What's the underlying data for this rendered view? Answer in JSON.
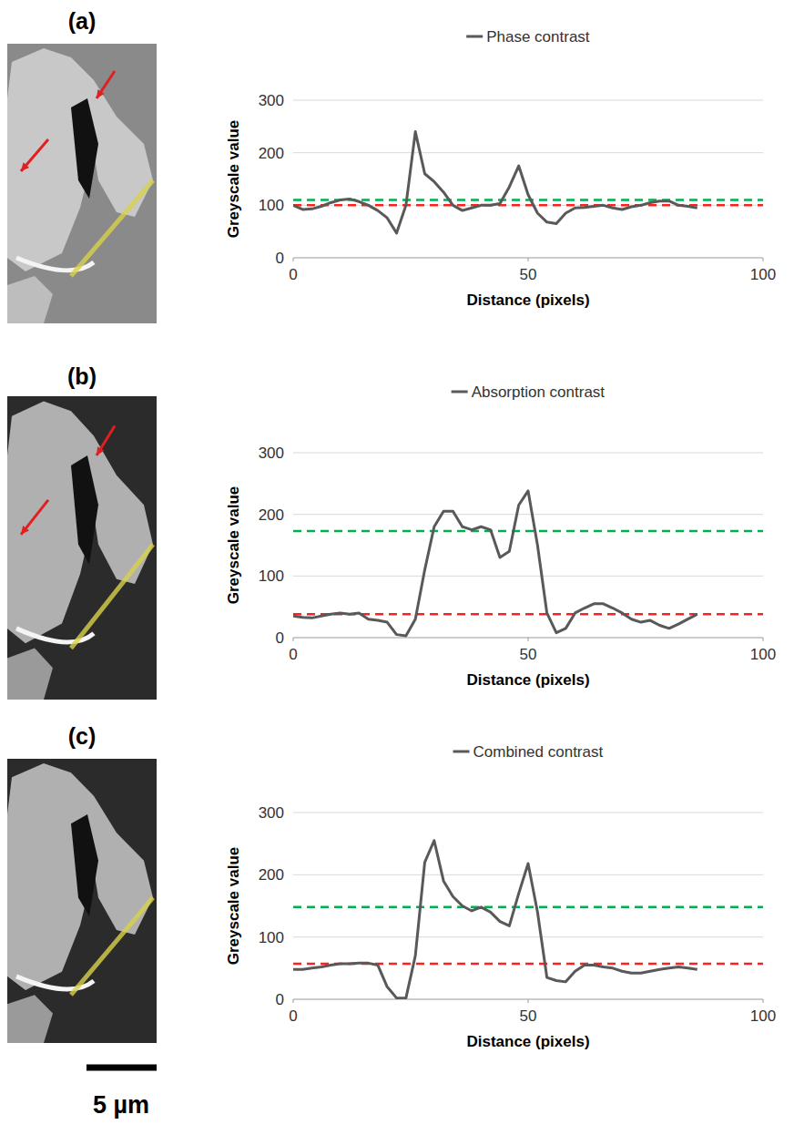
{
  "chart_data": [
    {
      "type": "line",
      "panel": "(a)",
      "xlabel": "Distance (pixels)",
      "ylabel": "Greyscale value",
      "legend": "top",
      "grid": true,
      "xlim": [
        0,
        100
      ],
      "xticks": [
        0,
        50,
        100
      ],
      "ylim": [
        0,
        300
      ],
      "yticks": [
        0,
        100,
        200,
        300
      ],
      "x": [
        0,
        2,
        4,
        6,
        8,
        10,
        12,
        14,
        16,
        18,
        20,
        22,
        24,
        26,
        28,
        30,
        32,
        34,
        36,
        38,
        40,
        42,
        44,
        46,
        48,
        50,
        52,
        54,
        56,
        58,
        60,
        62,
        64,
        66,
        68,
        70,
        72,
        74,
        76,
        78,
        80,
        82,
        84,
        86
      ],
      "series": [
        {
          "name": "Phase contrast",
          "color": "#595959",
          "values": [
            100,
            92,
            93,
            98,
            105,
            110,
            112,
            107,
            100,
            90,
            76,
            47,
            100,
            240,
            160,
            145,
            125,
            100,
            90,
            95,
            100,
            100,
            103,
            135,
            175,
            120,
            85,
            68,
            65,
            85,
            95,
            96,
            98,
            100,
            95,
            92,
            97,
            100,
            105,
            108,
            108,
            100,
            98,
            95
          ]
        }
      ],
      "reference_lines": [
        {
          "value": 110,
          "color": "#00b050",
          "line_style": "dashed"
        },
        {
          "value": 100,
          "color": "#ff2020",
          "line_style": "dashed"
        }
      ]
    },
    {
      "type": "line",
      "panel": "(b)",
      "xlabel": "Distance (pixels)",
      "ylabel": "Greyscale value",
      "legend": "top",
      "grid": true,
      "xlim": [
        0,
        100
      ],
      "xticks": [
        0,
        50,
        100
      ],
      "ylim": [
        0,
        300
      ],
      "yticks": [
        0,
        100,
        200,
        300
      ],
      "x": [
        0,
        2,
        4,
        6,
        8,
        10,
        12,
        14,
        16,
        18,
        20,
        22,
        24,
        26,
        28,
        30,
        32,
        34,
        36,
        38,
        40,
        42,
        44,
        46,
        48,
        50,
        52,
        54,
        56,
        58,
        60,
        62,
        64,
        66,
        68,
        70,
        72,
        74,
        76,
        78,
        80,
        82,
        84,
        86
      ],
      "series": [
        {
          "name": "Absorption contrast",
          "color": "#595959",
          "values": [
            35,
            33,
            32,
            35,
            38,
            40,
            38,
            40,
            30,
            28,
            25,
            5,
            3,
            30,
            110,
            180,
            205,
            205,
            180,
            175,
            180,
            175,
            130,
            140,
            215,
            238,
            150,
            40,
            8,
            15,
            40,
            48,
            55,
            55,
            48,
            40,
            30,
            25,
            28,
            20,
            15,
            22,
            30,
            38
          ]
        }
      ],
      "reference_lines": [
        {
          "value": 173,
          "color": "#00b050",
          "line_style": "dashed"
        },
        {
          "value": 38,
          "color": "#ff2020",
          "line_style": "dashed"
        }
      ]
    },
    {
      "type": "line",
      "panel": "(c)",
      "xlabel": "Distance (pixels)",
      "ylabel": "Greyscale value",
      "legend": "top",
      "grid": true,
      "xlim": [
        0,
        100
      ],
      "xticks": [
        0,
        50,
        100
      ],
      "ylim": [
        0,
        300
      ],
      "yticks": [
        0,
        100,
        200,
        300
      ],
      "x": [
        0,
        2,
        4,
        6,
        8,
        10,
        12,
        14,
        16,
        18,
        20,
        22,
        24,
        26,
        28,
        30,
        32,
        34,
        36,
        38,
        40,
        42,
        44,
        46,
        48,
        50,
        52,
        54,
        56,
        58,
        60,
        62,
        64,
        66,
        68,
        70,
        72,
        74,
        76,
        78,
        80,
        82,
        84,
        86
      ],
      "series": [
        {
          "name": "Combined contrast",
          "color": "#595959",
          "values": [
            48,
            48,
            50,
            52,
            55,
            57,
            57,
            58,
            58,
            55,
            20,
            2,
            2,
            70,
            220,
            255,
            190,
            165,
            150,
            142,
            148,
            140,
            125,
            118,
            170,
            218,
            140,
            35,
            30,
            28,
            45,
            55,
            55,
            52,
            50,
            45,
            42,
            42,
            45,
            48,
            50,
            52,
            50,
            48
          ]
        }
      ],
      "reference_lines": [
        {
          "value": 148,
          "color": "#00b050",
          "line_style": "dashed"
        },
        {
          "value": 57,
          "color": "#ff2020",
          "line_style": "dashed"
        }
      ]
    }
  ],
  "scale_bar": {
    "label": "5 µm"
  }
}
